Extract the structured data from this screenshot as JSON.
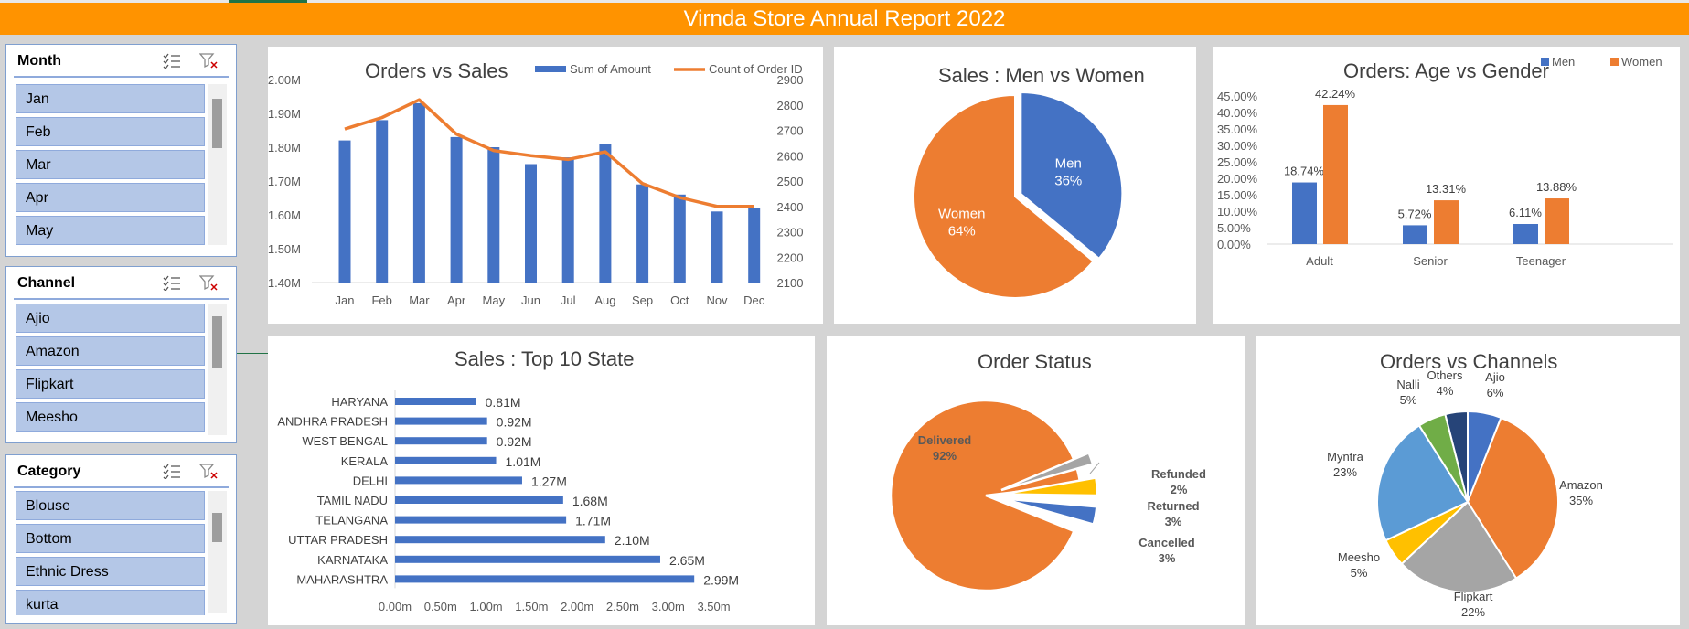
{
  "header": {
    "title": "Virnda Store Annual Report 2022"
  },
  "slicers": [
    {
      "title": "Month",
      "items": [
        "Jan",
        "Feb",
        "Mar",
        "Apr",
        "May"
      ]
    },
    {
      "title": "Channel",
      "items": [
        "Ajio",
        "Amazon",
        "Flipkart",
        "Meesho"
      ]
    },
    {
      "title": "Category",
      "items": [
        "Blouse",
        "Bottom",
        "Ethnic Dress",
        "kurta"
      ]
    }
  ],
  "colors": {
    "blue": "#4472c4",
    "orange": "#ed7d31",
    "gray": "#a5a5a5",
    "yellow": "#ffc000",
    "lightblue": "#5b9bd5",
    "green": "#70ad47",
    "navy": "#264478"
  },
  "chart_data": [
    {
      "type": "bar",
      "title": "Orders vs Sales",
      "categories": [
        "Jan",
        "Feb",
        "Mar",
        "Apr",
        "May",
        "Jun",
        "Jul",
        "Aug",
        "Sep",
        "Oct",
        "Nov",
        "Dec"
      ],
      "series": [
        {
          "name": "Sum of Amount",
          "type": "bar",
          "values": [
            1.82,
            1.88,
            1.93,
            1.83,
            1.8,
            1.75,
            1.77,
            1.81,
            1.69,
            1.66,
            1.61,
            1.62
          ]
        },
        {
          "name": "Count of Order ID",
          "type": "line",
          "values": [
            2705,
            2750,
            2820,
            2685,
            2620,
            2600,
            2585,
            2615,
            2490,
            2435,
            2400,
            2400
          ]
        }
      ],
      "y_ticks": [
        "1.40M",
        "1.50M",
        "1.60M",
        "1.70M",
        "1.80M",
        "1.90M",
        "2.00M"
      ],
      "ylim": [
        1.4,
        2.0
      ],
      "y2_ticks": [
        "2100",
        "2200",
        "2300",
        "2400",
        "2500",
        "2600",
        "2700",
        "2800",
        "2900"
      ],
      "y2lim": [
        2100,
        2900
      ],
      "legend": "top-right"
    },
    {
      "type": "pie",
      "title": "Sales : Men vs Women",
      "labels": [
        "Men",
        "Women"
      ],
      "values": [
        36,
        64
      ],
      "value_labels": [
        "36%",
        "64%"
      ]
    },
    {
      "type": "bar",
      "title": "Orders: Age vs Gender",
      "categories": [
        "Adult",
        "Senior",
        "Teenager"
      ],
      "series": [
        {
          "name": "Men",
          "values": [
            18.74,
            5.72,
            6.11
          ],
          "labels": [
            "18.74%",
            "5.72%",
            "6.11%"
          ]
        },
        {
          "name": "Women",
          "values": [
            42.24,
            13.31,
            13.88
          ],
          "labels": [
            "42.24%",
            "13.31%",
            "13.88%"
          ]
        }
      ],
      "y_ticks": [
        "0.00%",
        "5.00%",
        "10.00%",
        "15.00%",
        "20.00%",
        "25.00%",
        "30.00%",
        "35.00%",
        "40.00%",
        "45.00%"
      ],
      "ylim": [
        0,
        45
      ],
      "legend": "top-right"
    },
    {
      "type": "bar",
      "orientation": "horizontal",
      "title": "Sales : Top 10 State",
      "categories": [
        "HARYANA",
        "ANDHRA PRADESH",
        "WEST BENGAL",
        "KERALA",
        "DELHI",
        "TAMIL NADU",
        "TELANGANA",
        "UTTAR PRADESH",
        "KARNATAKA",
        "MAHARASHTRA"
      ],
      "values": [
        0.81,
        0.92,
        0.92,
        1.01,
        1.27,
        1.68,
        1.71,
        2.1,
        2.65,
        2.99
      ],
      "value_labels": [
        "0.81M",
        "0.92M",
        "0.92M",
        "1.01M",
        "1.27M",
        "1.68M",
        "1.71M",
        "2.10M",
        "2.65M",
        "2.99M"
      ],
      "x_ticks": [
        "0.00m",
        "0.50m",
        "1.00m",
        "1.50m",
        "2.00m",
        "2.50m",
        "3.00m",
        "3.50m"
      ],
      "xlim": [
        0,
        3.5
      ]
    },
    {
      "type": "pie",
      "title": "Order Status",
      "labels": [
        "Delivered",
        "Refunded",
        "Returned",
        "Cancelled"
      ],
      "values": [
        92,
        2,
        3,
        3
      ],
      "value_labels": [
        "92%",
        "2%",
        "3%",
        "3%"
      ]
    },
    {
      "type": "pie",
      "title": "Orders vs Channels",
      "labels": [
        "Ajio",
        "Amazon",
        "Flipkart",
        "Meesho",
        "Myntra",
        "Nalli",
        "Others"
      ],
      "values": [
        6,
        35,
        22,
        5,
        23,
        5,
        4
      ],
      "value_labels": [
        "6%",
        "35%",
        "22%",
        "5%",
        "23%",
        "5%",
        "4%"
      ]
    }
  ]
}
